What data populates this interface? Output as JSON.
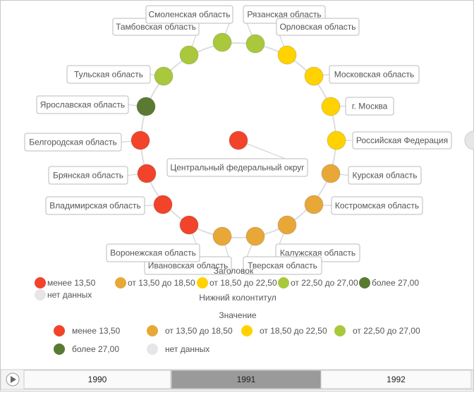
{
  "center": {
    "label": "Центральный федеральный округ",
    "color": "#f2432b"
  },
  "nodes": [
    {
      "label": "Рязанская область",
      "color": "#a9c83c"
    },
    {
      "label": "Орловская область",
      "color": "#ffd200"
    },
    {
      "label": "Московская область",
      "color": "#ffd200"
    },
    {
      "label": "г. Москва",
      "color": "#ffd200"
    },
    {
      "label": "Российская Федерация",
      "color": "#ffd200"
    },
    {
      "label": "Курская область",
      "color": "#e8a838"
    },
    {
      "label": "Костромская область",
      "color": "#e8a838"
    },
    {
      "label": "Калужская область",
      "color": "#e8a838"
    },
    {
      "label": "Тверская область",
      "color": "#e8a838"
    },
    {
      "label": "Ивановская область",
      "color": "#e8a838"
    },
    {
      "label": "Воронежская область",
      "color": "#f2432b"
    },
    {
      "label": "Владимирская область",
      "color": "#f2432b"
    },
    {
      "label": "Брянская область",
      "color": "#f2432b"
    },
    {
      "label": "Белгородская область",
      "color": "#f2432b"
    },
    {
      "label": "Ярославская область",
      "color": "#5a7a32"
    },
    {
      "label": "Тульская область",
      "color": "#a9c83c"
    },
    {
      "label": "Тамбовская область",
      "color": "#a9c83c"
    },
    {
      "label": "Смоленская область",
      "color": "#a9c83c"
    }
  ],
  "legend_top": {
    "title": "Заголовок",
    "footer": "Нижний колонтитул",
    "items": [
      {
        "label": "менее 13,50",
        "color": "#f2432b"
      },
      {
        "label": "от 13,50 до 18,50",
        "color": "#e8a838"
      },
      {
        "label": "от 18,50 до 22,50",
        "color": "#ffd200"
      },
      {
        "label": "от 22,50 до 27,00",
        "color": "#a9c83c"
      },
      {
        "label": "более 27,00",
        "color": "#5a7a32"
      },
      {
        "label": "нет данных",
        "color": "#e6e6e6"
      }
    ]
  },
  "legend_bottom": {
    "title": "Значение",
    "items": [
      {
        "label": "менее 13,50",
        "color": "#f2432b"
      },
      {
        "label": "от 13,50 до 18,50",
        "color": "#e8a838"
      },
      {
        "label": "от 18,50 до 22,50",
        "color": "#ffd200"
      },
      {
        "label": "от 22,50 до 27,00",
        "color": "#a9c83c"
      },
      {
        "label": "более 27,00",
        "color": "#5a7a32"
      },
      {
        "label": "нет данных",
        "color": "#e6e6e6"
      }
    ]
  },
  "timeline": {
    "years": [
      "1990",
      "1991",
      "1992"
    ],
    "active": 1
  }
}
